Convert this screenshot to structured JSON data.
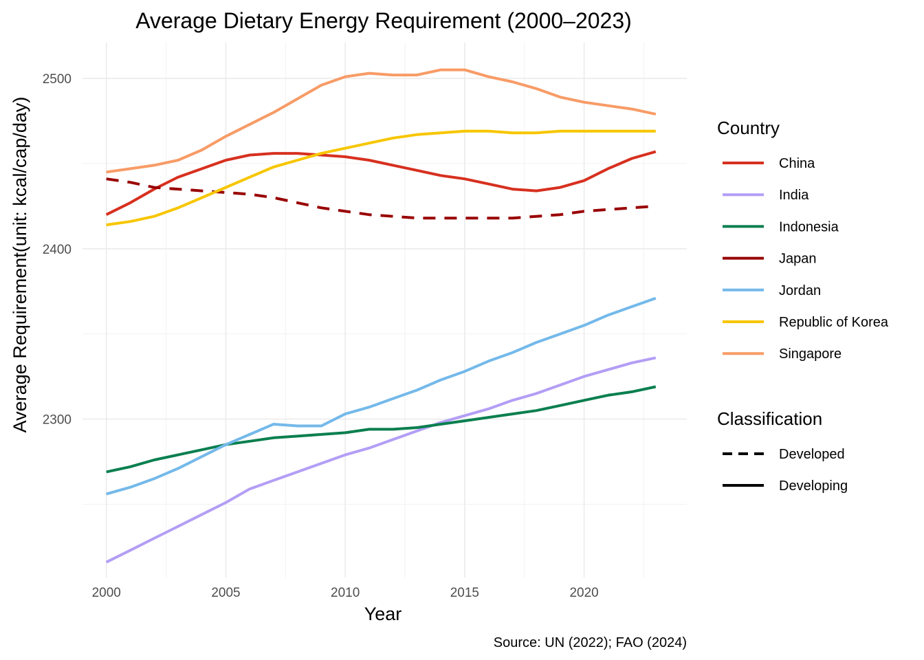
{
  "chart_data": {
    "type": "line",
    "title": "Average Dietary Energy Requirement (2000–2023)",
    "xlabel": "Year",
    "ylabel": "Average Requirement(unit: kcal/cap/day)",
    "caption": "Source: UN (2022); FAO (2024)",
    "xlim": [
      1999.0,
      2024.3
    ],
    "ylim": [
      2207,
      2521
    ],
    "x_ticks": [
      2000,
      2005,
      2010,
      2015,
      2020
    ],
    "x_tick_labels": [
      "2000",
      "2005",
      "2010",
      "2015",
      "2020"
    ],
    "y_ticks": [
      2300,
      2400,
      2500
    ],
    "y_tick_labels": [
      "2300",
      "2400",
      "2500"
    ],
    "grid": true,
    "legend_position": "right",
    "legend_country_title": "Country",
    "legend_class_title": "Classification",
    "classifications": [
      {
        "name": "Developed",
        "linetype": "dashed"
      },
      {
        "name": "Developing",
        "linetype": "solid"
      }
    ],
    "x": [
      2000,
      2001,
      2002,
      2003,
      2004,
      2005,
      2006,
      2007,
      2008,
      2009,
      2010,
      2011,
      2012,
      2013,
      2014,
      2015,
      2016,
      2017,
      2018,
      2019,
      2020,
      2021,
      2022,
      2023
    ],
    "series": [
      {
        "name": "China",
        "color": "#d7301f",
        "classification": "Developing",
        "values": [
          2420,
          2427,
          2435,
          2442,
          2447,
          2452,
          2455,
          2456,
          2456,
          2455,
          2454,
          2452,
          2449,
          2446,
          2443,
          2441,
          2438,
          2435,
          2434,
          2436,
          2440,
          2447,
          2453,
          2457
        ]
      },
      {
        "name": "India",
        "color": "#b39ef5",
        "classification": "Developing",
        "values": [
          2216,
          2223,
          2230,
          2237,
          2244,
          2251,
          2259,
          2264,
          2269,
          2274,
          2279,
          2283,
          2288,
          2293,
          2298,
          2302,
          2306,
          2311,
          2315,
          2320,
          2325,
          2329,
          2333,
          2336
        ]
      },
      {
        "name": "Indonesia",
        "color": "#0a7f4f",
        "classification": "Developing",
        "values": [
          2269,
          2272,
          2276,
          2279,
          2282,
          2285,
          2287,
          2289,
          2290,
          2291,
          2292,
          2294,
          2294,
          2295,
          2297,
          2299,
          2301,
          2303,
          2305,
          2308,
          2311,
          2314,
          2316,
          2319
        ]
      },
      {
        "name": "Japan",
        "color": "#990000",
        "classification": "Developed",
        "values": [
          2441,
          2439,
          2436,
          2435,
          2434,
          2433,
          2432,
          2430,
          2427,
          2424,
          2422,
          2420,
          2419,
          2418,
          2418,
          2418,
          2418,
          2418,
          2419,
          2420,
          2422,
          2423,
          2424,
          2425
        ]
      },
      {
        "name": "Jordan",
        "color": "#74b9ea",
        "classification": "Developing",
        "values": [
          2256,
          2260,
          2265,
          2271,
          2278,
          2285,
          2291,
          2297,
          2296,
          2296,
          2303,
          2307,
          2312,
          2317,
          2323,
          2328,
          2334,
          2339,
          2345,
          2350,
          2355,
          2361,
          2366,
          2371
        ]
      },
      {
        "name": "Republic of Korea",
        "color": "#f7c600",
        "classification": "Developing",
        "values": [
          2414,
          2416,
          2419,
          2424,
          2430,
          2436,
          2442,
          2448,
          2452,
          2456,
          2459,
          2462,
          2465,
          2467,
          2468,
          2469,
          2469,
          2468,
          2468,
          2469,
          2469,
          2469,
          2469,
          2469
        ]
      },
      {
        "name": "Singapore",
        "color": "#f89b66",
        "classification": "Developing",
        "values": [
          2445,
          2447,
          2449,
          2452,
          2458,
          2466,
          2473,
          2480,
          2488,
          2496,
          2501,
          2503,
          2502,
          2502,
          2505,
          2505,
          2501,
          2498,
          2494,
          2489,
          2486,
          2484,
          2482,
          2479
        ]
      }
    ]
  }
}
